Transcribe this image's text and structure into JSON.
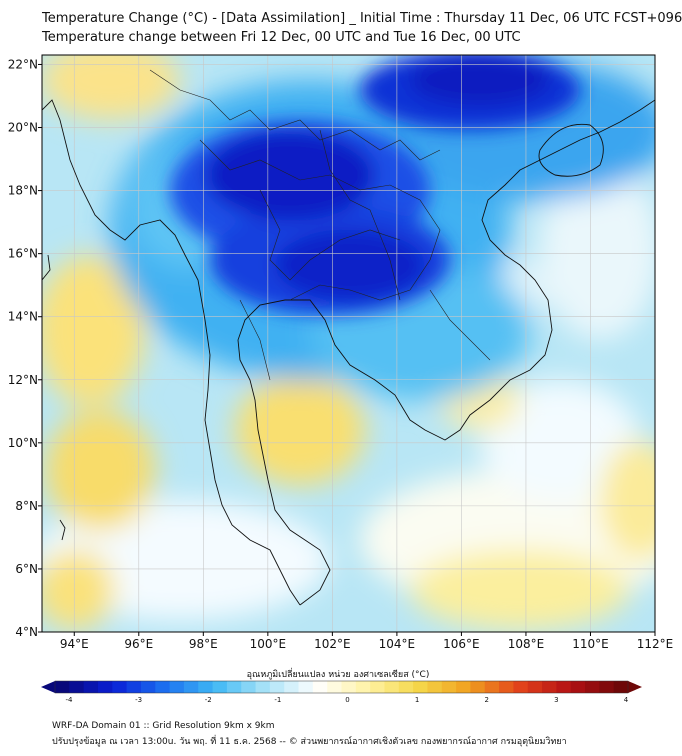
{
  "title": {
    "line1": "Temperature Change (°C) - [Data Assimilation] _ Initial Time : Thursday 11 Dec, 06 UTC FCST+096",
    "line2": "Temperature change between Fri 12 Dec, 00 UTC and Tue 16 Dec, 00 UTC"
  },
  "map": {
    "lat_labels": [
      "22°N",
      "20°N",
      "18°N",
      "16°N",
      "14°N",
      "12°N",
      "10°N",
      "8°N",
      "6°N",
      "4°N"
    ],
    "lon_labels": [
      "94°E",
      "96°E",
      "98°E",
      "100°E",
      "102°E",
      "104°E",
      "106°E",
      "108°E",
      "110°E",
      "112°E"
    ],
    "lon_range": [
      93,
      112
    ],
    "lat_range": [
      4,
      22.3
    ]
  },
  "colorbar": {
    "label": "อุณหภูมิเปลี่ยนแปลง หน่วย องศาเซลเซียส (°C)",
    "ticks": [
      "-4",
      "-3",
      "-2",
      "-1",
      "0",
      "1",
      "2",
      "3",
      "4"
    ],
    "range": [
      -4,
      4
    ],
    "colors": [
      "#08087a",
      "#0a1fd6",
      "#1c6ff0",
      "#3fb8f5",
      "#a9e3f7",
      "#ffffff",
      "#fff3a6",
      "#f5d84a",
      "#f0a020",
      "#e2431b",
      "#b31014",
      "#6e0808"
    ]
  },
  "footer": {
    "line1": "WRF-DA Domain 01 :: Grid Resolution 9km x 9km",
    "line2": "ปรับปรุงข้อมูล ณ เวลา 13:00u. วัน พฤ. ที่ 11 ธ.ค. 2568 -- © ส่วนพยากรณ์อากาศเชิงตัวเลข กองพยากรณ์อากาศ กรมอุตุนิยมวิทยา"
  }
}
